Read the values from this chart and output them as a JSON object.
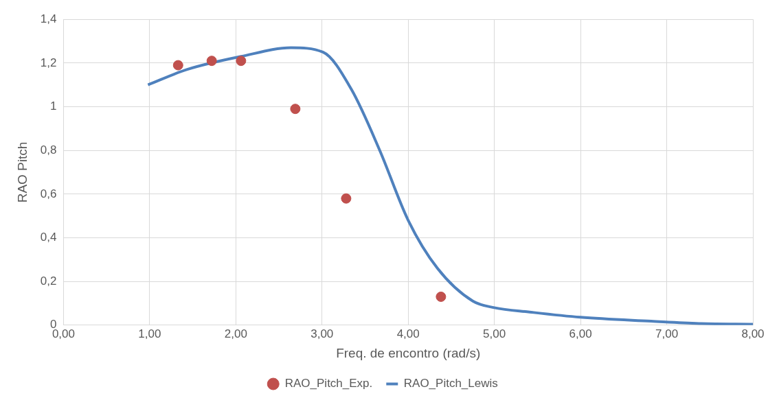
{
  "chart_data": {
    "type": "line",
    "xlabel": "Freq. de encontro (rad/s)",
    "ylabel": "RAO Pitch",
    "xlim": [
      0,
      8
    ],
    "xticks": [
      {
        "value": 0,
        "label": "0,00"
      },
      {
        "value": 1,
        "label": "1,00"
      },
      {
        "value": 2,
        "label": "2,00"
      },
      {
        "value": 3,
        "label": "3,00"
      },
      {
        "value": 4,
        "label": "4,00"
      },
      {
        "value": 5,
        "label": "5,00"
      },
      {
        "value": 6,
        "label": "6,00"
      },
      {
        "value": 7,
        "label": "7,00"
      },
      {
        "value": 8,
        "label": "8,00"
      }
    ],
    "ylim": [
      0,
      1.4
    ],
    "yticks": [
      0,
      {
        "value": 0.2,
        "label": "0,2"
      },
      {
        "value": 0.4,
        "label": "0,4"
      },
      {
        "value": 0.6,
        "label": "0,6"
      },
      {
        "value": 0.8,
        "label": "0,8"
      },
      1,
      {
        "value": 1.2,
        "label": "1,2"
      },
      {
        "value": 1.4,
        "label": "1,4"
      }
    ],
    "grid": true,
    "legend": "bottom",
    "series": [
      {
        "name": "RAO_Pitch_Exp.",
        "type": "scatter",
        "marker": "circle",
        "color": "#c0504d",
        "x": [
          1.33,
          1.72,
          2.06,
          2.69,
          3.28,
          4.38
        ],
        "values": [
          1.19,
          1.21,
          1.21,
          0.99,
          0.58,
          0.13
        ]
      },
      {
        "name": "RAO_Pitch_Lewis",
        "type": "line",
        "marker": "none",
        "line_style": "solid",
        "color": "#4f81bd",
        "x": [
          0.98,
          1.43,
          2.06,
          2.64,
          3.01,
          3.34,
          3.67,
          4.0,
          4.34,
          4.75,
          5.0,
          5.41,
          6.0,
          6.82,
          7.4,
          8.0
        ],
        "values": [
          1.1,
          1.17,
          1.23,
          1.27,
          1.25,
          1.08,
          0.8,
          0.48,
          0.26,
          0.11,
          0.08,
          0.06,
          0.036,
          0.018,
          0.007,
          0.004
        ]
      }
    ]
  }
}
